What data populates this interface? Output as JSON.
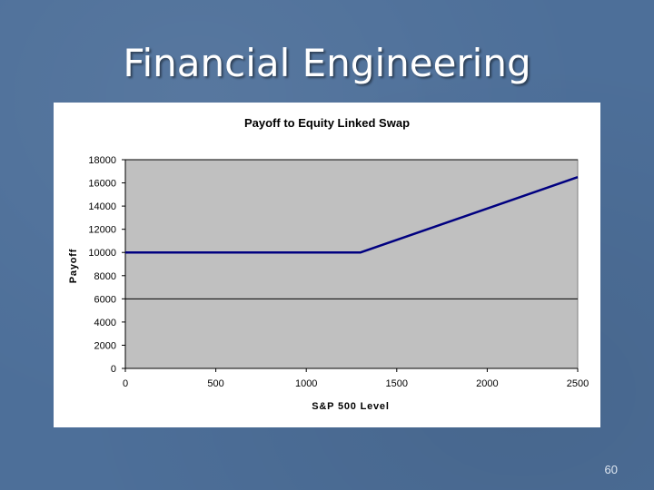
{
  "slide": {
    "title": "Financial Engineering",
    "page_number": "60"
  },
  "colors": {
    "background": "#4d6f99",
    "plot_area": "#c0c0c0",
    "series_line": "#000080",
    "gridline": "#000000"
  },
  "chart_data": {
    "type": "line",
    "title": "Payoff to Equity Linked Swap",
    "xlabel": "S&P 500 Level",
    "ylabel": "Payoff",
    "xlim": [
      0,
      2500
    ],
    "ylim": [
      0,
      18000
    ],
    "x_ticks": [
      "0",
      "500",
      "1000",
      "1500",
      "2000",
      "2500"
    ],
    "y_ticks": [
      "0",
      "2000",
      "4000",
      "6000",
      "8000",
      "10000",
      "12000",
      "14000",
      "16000",
      "18000"
    ],
    "gridlines_y": [
      6000,
      18000
    ],
    "grid": true,
    "legend": "none",
    "series": [
      {
        "x": [
          0,
          1300,
          2500
        ],
        "y": [
          10000,
          10000,
          16500
        ]
      }
    ]
  }
}
